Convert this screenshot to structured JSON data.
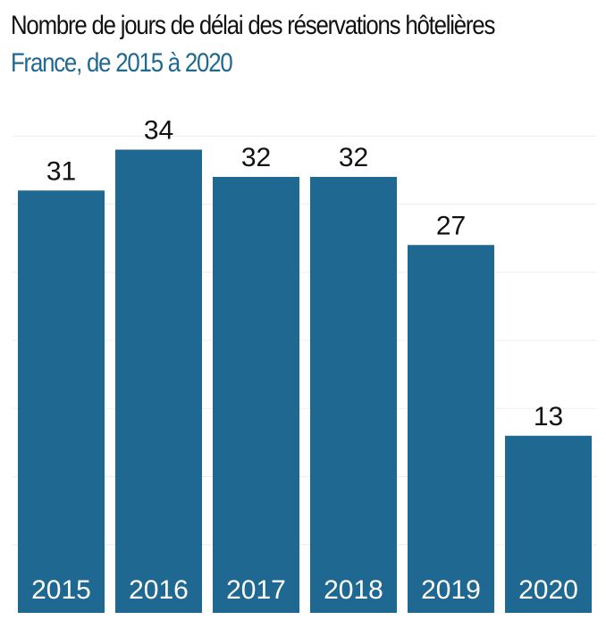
{
  "chart_data": {
    "type": "bar",
    "title": "Nombre de jours de délai des réservations hôtelières",
    "subtitle": "France, de 2015 à 2020",
    "categories": [
      "2015",
      "2016",
      "2017",
      "2018",
      "2019",
      "2020"
    ],
    "values": [
      31,
      34,
      32,
      32,
      27,
      13
    ],
    "xlabel": "",
    "ylabel": "",
    "ylim": [
      0,
      40
    ],
    "grid": true,
    "legend": "none",
    "bar_color": "#1f6891",
    "value_label_color": "#111111",
    "tick_label_color": "#ffffff"
  }
}
